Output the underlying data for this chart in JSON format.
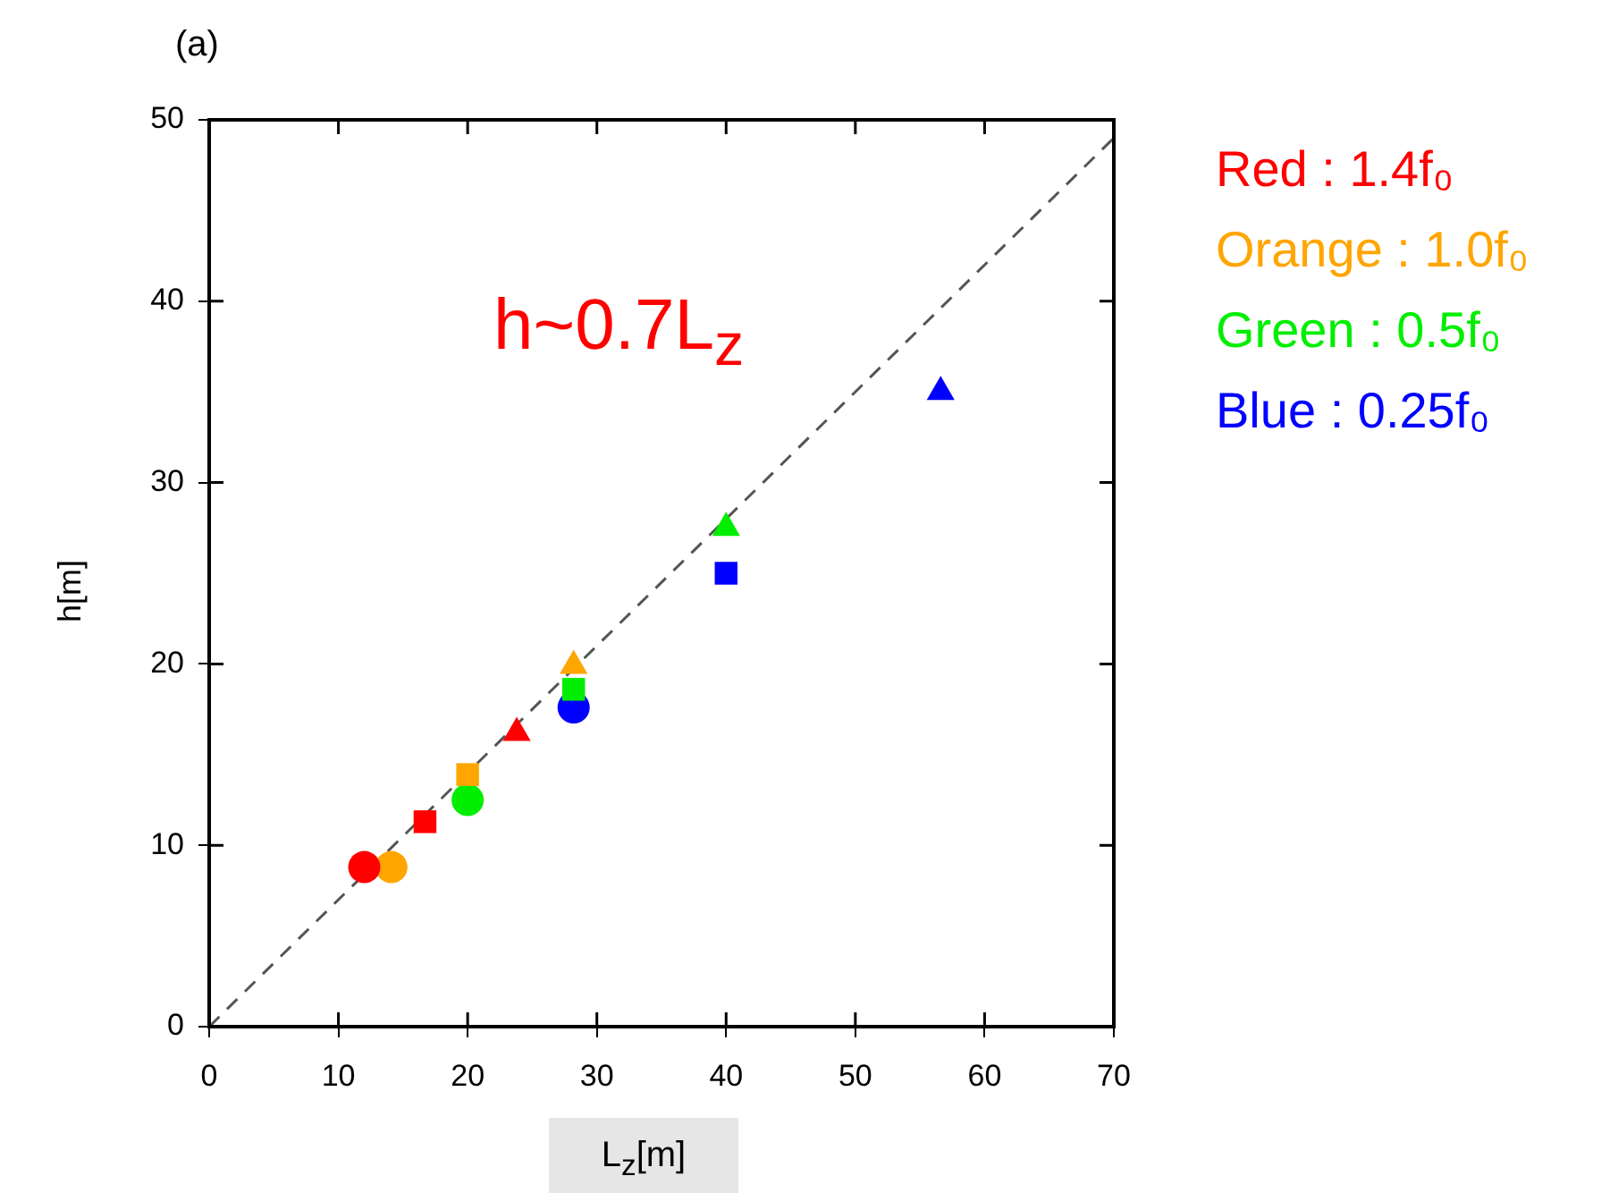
{
  "chart_data": {
    "type": "scatter",
    "title": "(a)",
    "xlabel": "L$_{z}$[m]",
    "ylabel": "h[m]",
    "xlim": [
      0,
      70
    ],
    "xticks": [
      0,
      10,
      20,
      30,
      40,
      50,
      60,
      70
    ],
    "ylim": [
      0,
      50
    ],
    "yticks": [
      0,
      10,
      20,
      30,
      40,
      50
    ],
    "grid": false,
    "legend": "top right",
    "annotations": [
      "h~0.7L$_{z}$"
    ],
    "series": [
      {
        "name": "Red : 1.4f₀",
        "color": "#ff0000",
        "x": [
          12,
          16.7,
          23.8
        ],
        "values": [
          8.8,
          11.3,
          16.2
        ],
        "marker": [
          "circle",
          "square",
          "triangle"
        ]
      },
      {
        "name": "Orange : 1.0f₀",
        "color": "#ffa500",
        "x": [
          14.1,
          20,
          28.2
        ],
        "values": [
          8.8,
          13.9,
          19.9
        ],
        "marker": [
          "circle",
          "square",
          "triangle"
        ]
      },
      {
        "name": "Green : 0.5f₀",
        "color": "#00ee00",
        "x": [
          20,
          28.2,
          40
        ],
        "values": [
          12.5,
          18.6,
          27.5
        ],
        "marker": [
          "circle",
          "square",
          "triangle"
        ]
      },
      {
        "name": "Blue : 0.25f₀",
        "color": "#0000ff",
        "x": [
          28.2,
          40,
          56.6
        ],
        "values": [
          17.6,
          25,
          35
        ],
        "marker": [
          "circle",
          "square",
          "triangle"
        ]
      },
      {
        "type": "line",
        "color": "#555555",
        "x": [
          0,
          70
        ],
        "values": [
          0,
          49
        ],
        "marker": "none",
        "line_style": "dashed"
      }
    ]
  }
}
